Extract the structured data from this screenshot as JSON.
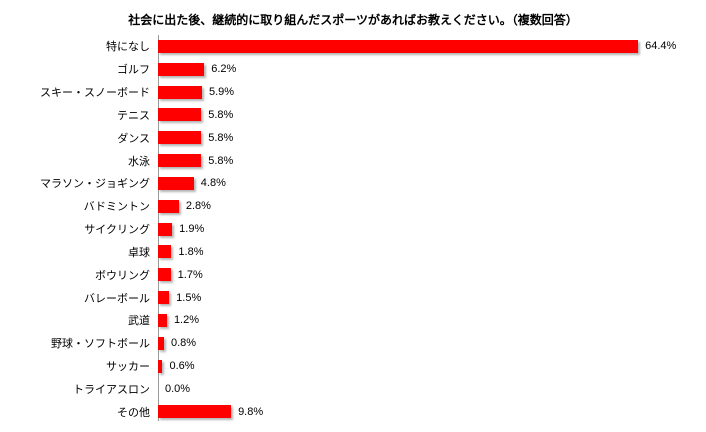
{
  "title": "社会に出た後、継続的に取り組んだスポーツがあればお教えください。（複数回答）",
  "chart_data": {
    "type": "bar",
    "orientation": "horizontal",
    "title": "社会に出た後、継続的に取り組んだスポーツがあればお教えください。（複数回答）",
    "categories": [
      "特になし",
      "ゴルフ",
      "スキー・スノーボード",
      "テニス",
      "ダンス",
      "水泳",
      "マラソン・ジョギング",
      "バドミントン",
      "サイクリング",
      "卓球",
      "ボウリング",
      "バレーボール",
      "武道",
      "野球・ソフトボール",
      "サッカー",
      "トライアスロン",
      "その他"
    ],
    "values": [
      64.4,
      6.2,
      5.9,
      5.8,
      5.8,
      5.8,
      4.8,
      2.8,
      1.9,
      1.8,
      1.7,
      1.5,
      1.2,
      0.8,
      0.6,
      0.0,
      9.8
    ],
    "value_labels": [
      "64.4%",
      "6.2%",
      "5.9%",
      "5.8%",
      "5.8%",
      "5.8%",
      "4.8%",
      "2.8%",
      "1.9%",
      "1.8%",
      "1.7%",
      "1.5%",
      "1.2%",
      "0.8%",
      "0.6%",
      "0.0%",
      "9.8%"
    ],
    "xlabel": "",
    "ylabel": "",
    "xlim": [
      0,
      73.5
    ],
    "grid": false,
    "legend": false,
    "bar_color": "#ff0000",
    "axis_line_color": "#9a9a9a"
  }
}
